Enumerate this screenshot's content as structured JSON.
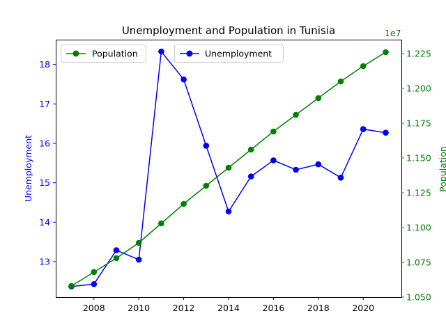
{
  "chart_data": {
    "type": "line",
    "title": "Unemployment and Population in Tunisia",
    "x": [
      2007,
      2008,
      2009,
      2010,
      2011,
      2012,
      2013,
      2014,
      2015,
      2016,
      2017,
      2018,
      2019,
      2020,
      2021
    ],
    "xlim": [
      2006.3,
      2021.7
    ],
    "xticks": [
      "2008",
      "2010",
      "2012",
      "2014",
      "2016",
      "2018",
      "2020"
    ],
    "y_left": {
      "label": "Unemployment",
      "color": "#0000ff",
      "ylim": [
        12.1,
        18.63
      ],
      "ticks": [
        "13",
        "14",
        "15",
        "16",
        "17",
        "18"
      ]
    },
    "y_right": {
      "label": "Population",
      "color": "#008000",
      "ylim": [
        10500000,
        12350000
      ],
      "ticks": [
        "1.050",
        "1.075",
        "1.100",
        "1.125",
        "1.150",
        "1.175",
        "1.200",
        "1.225"
      ],
      "offset_text": "1e7"
    },
    "series": [
      {
        "name": "Unemployment",
        "axis": "left",
        "color": "#0000ff",
        "values": [
          12.37,
          12.43,
          13.29,
          13.05,
          18.33,
          17.62,
          15.94,
          14.27,
          15.16,
          15.57,
          15.33,
          15.47,
          15.13,
          16.36,
          16.27
        ]
      },
      {
        "name": "Population",
        "axis": "right",
        "color": "#008000",
        "values": [
          10580000,
          10680000,
          10780000,
          10890000,
          11030000,
          11170000,
          11300000,
          11430000,
          11560000,
          11690000,
          11810000,
          11930000,
          12050000,
          12160000,
          12260000
        ]
      }
    ],
    "legends": [
      {
        "position": "upper-left",
        "entries": [
          "Population"
        ]
      },
      {
        "position": "upper-center",
        "entries": [
          "Unemployment"
        ]
      }
    ],
    "grid": false
  }
}
